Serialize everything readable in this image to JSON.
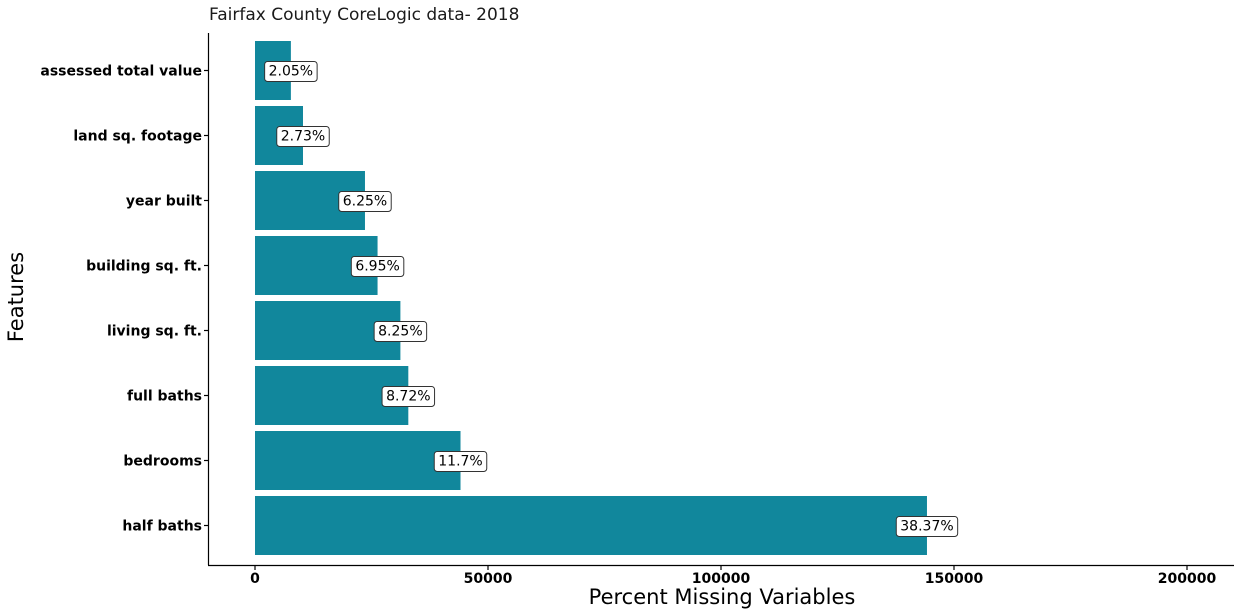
{
  "chart_data": {
    "type": "bar",
    "orientation": "horizontal",
    "title": "Fairfax County CoreLogic data- 2018",
    "xlabel": "Percent Missing Variables",
    "ylabel": "Features",
    "xlim": [
      -10000,
      210000
    ],
    "xticks": [
      0,
      50000,
      100000,
      150000,
      200000
    ],
    "xtick_labels": [
      "0",
      "50000",
      "100000",
      "150000",
      "200000"
    ],
    "categories": [
      "assessed total value",
      "land sq. footage",
      "year built",
      "building sq. ft.",
      "living sq. ft.",
      "full baths",
      "bedrooms",
      "half baths"
    ],
    "values": [
      7700,
      10300,
      23600,
      26300,
      31200,
      32900,
      44100,
      144200
    ],
    "data_labels": [
      "2.05%",
      "2.73%",
      "6.25%",
      "6.95%",
      "8.25%",
      "8.72%",
      "11.7%",
      "38.37%"
    ],
    "bar_color": "#11879c",
    "grid": false,
    "legend": "none"
  }
}
